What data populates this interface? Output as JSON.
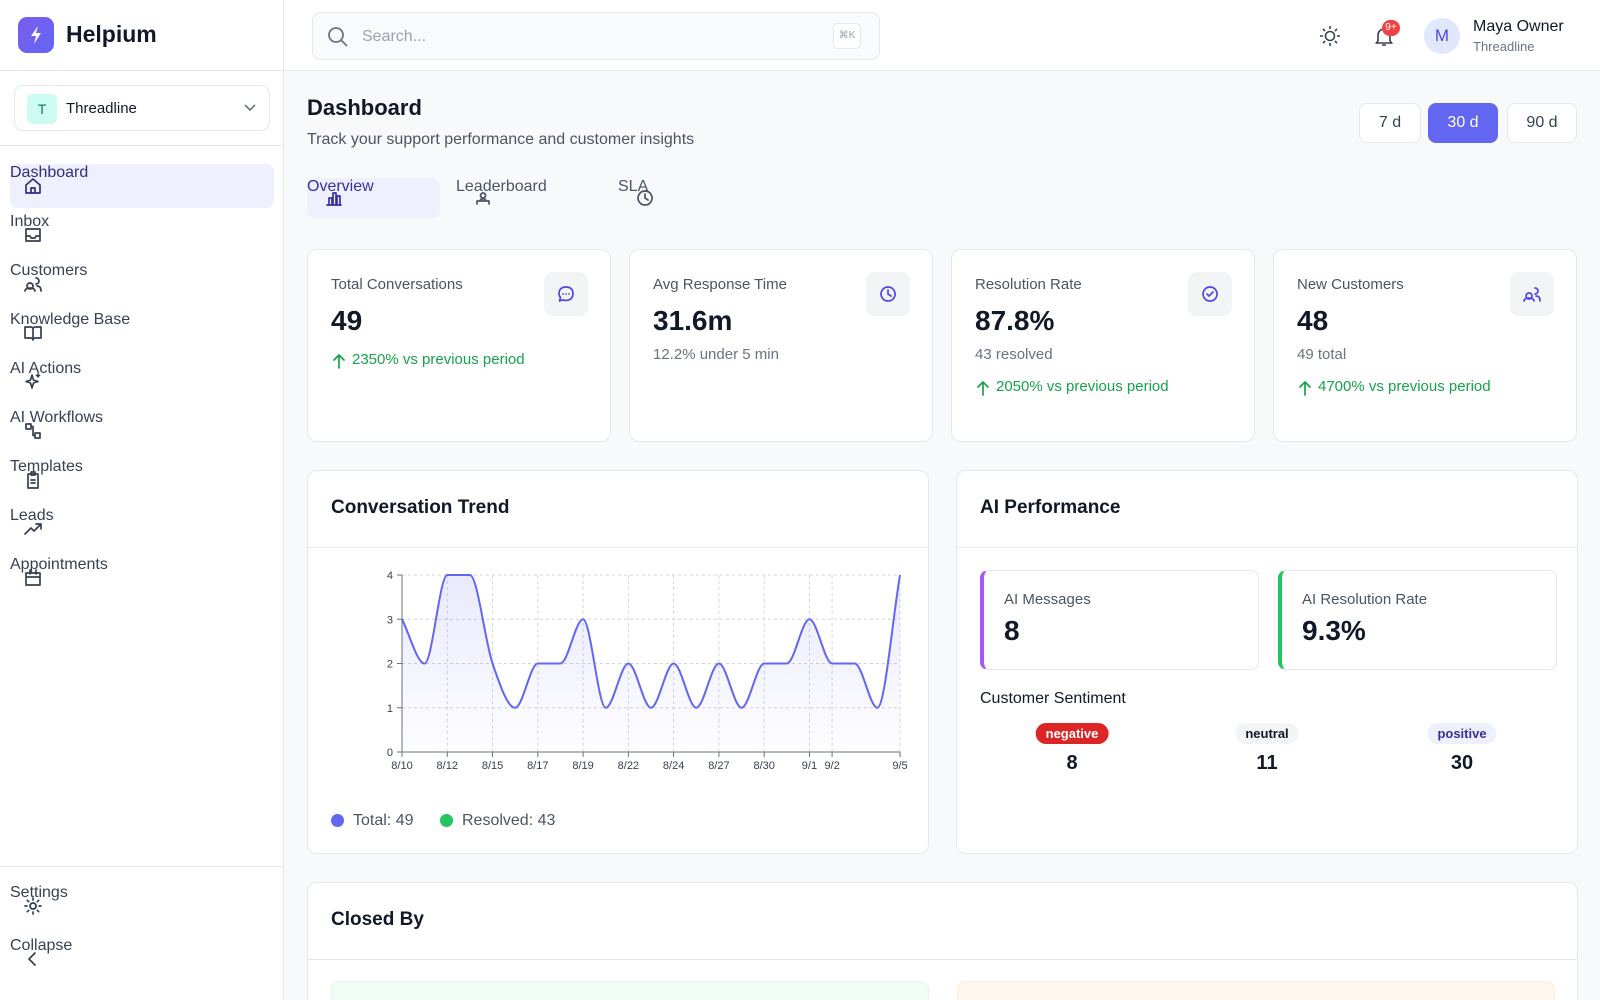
{
  "brand": "Helpium",
  "workspace": {
    "initial": "T",
    "name": "Threadline"
  },
  "nav": [
    "Dashboard",
    "Inbox",
    "Customers",
    "Knowledge Base",
    "AI Actions",
    "AI Workflows",
    "Templates",
    "Leads",
    "Appointments"
  ],
  "footer_nav": [
    "Settings",
    "Collapse"
  ],
  "search": {
    "placeholder": "Search...",
    "shortcut": "⌘K"
  },
  "notifications": "9+",
  "user": {
    "initial": "M",
    "name": "Maya Owner",
    "org": "Threadline"
  },
  "header": {
    "title": "Dashboard",
    "subtitle": "Track your support performance and customer insights"
  },
  "ranges": [
    "7 d",
    "30 d",
    "90 d"
  ],
  "active_range": 1,
  "tabs": [
    "Overview",
    "Leaderboard",
    "SLA"
  ],
  "stats": [
    {
      "label": "Total Conversations",
      "value": "49",
      "change": "2350% vs previous period"
    },
    {
      "label": "Avg Response Time",
      "value": "31.6m",
      "sub": "12.2% under 5 min"
    },
    {
      "label": "Resolution Rate",
      "value": "87.8%",
      "sub": "43 resolved",
      "change": "2050% vs previous period"
    },
    {
      "label": "New Customers",
      "value": "48",
      "sub": "49 total",
      "change": "4700% vs previous period"
    }
  ],
  "trend": {
    "title": "Conversation Trend",
    "legend": [
      {
        "label": "Total: 49",
        "color": "#6366f1"
      },
      {
        "label": "Resolved: 43",
        "color": "#22c55e"
      }
    ]
  },
  "chart_data": {
    "type": "line",
    "categories": [
      "8/10",
      null,
      "8/12",
      null,
      "8/15",
      null,
      "8/17",
      null,
      "8/19",
      null,
      "8/22",
      null,
      "8/24",
      null,
      "8/27",
      null,
      "8/30",
      null,
      "9/1",
      "9/2",
      null,
      null,
      "9/5"
    ],
    "series": [
      {
        "color": "#6366f1",
        "values": [
          3,
          2,
          4,
          4,
          2,
          1,
          2,
          2,
          3,
          1,
          2,
          1,
          2,
          1,
          2,
          1,
          2,
          2,
          3,
          2,
          2,
          1,
          4
        ]
      }
    ],
    "ylim": [
      0,
      4
    ],
    "yticks": [
      0,
      1,
      2,
      3,
      4
    ],
    "grid": true
  },
  "ai": {
    "title": "AI Performance",
    "cards": [
      {
        "label": "AI Messages",
        "value": "8"
      },
      {
        "label": "AI Resolution Rate",
        "value": "9.3%"
      }
    ],
    "sentiment_title": "Customer Sentiment",
    "sentiment": [
      {
        "label": "negative",
        "value": "8"
      },
      {
        "label": "neutral",
        "value": "11"
      },
      {
        "label": "positive",
        "value": "30"
      }
    ]
  },
  "closed_by": {
    "title": "Closed By"
  }
}
